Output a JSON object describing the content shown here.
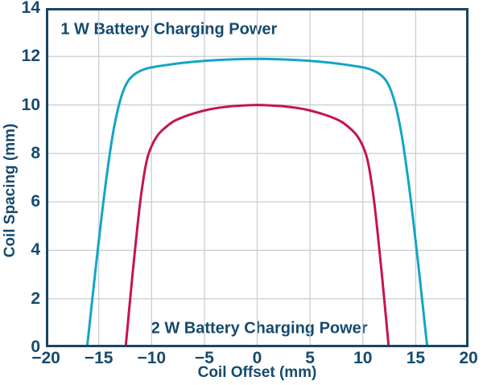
{
  "colors": {
    "background": "#FFFFFF",
    "frame": "#1A4563",
    "grid": "#C9CED3",
    "text": "#154A6E",
    "curve_1w": "#14A5C5",
    "curve_2w": "#C4164A"
  },
  "chart_data": {
    "type": "line",
    "title": "",
    "xlabel": "Coil Offset (mm)",
    "ylabel": "Coil Spacing (mm)",
    "xlim": [
      -20,
      20
    ],
    "ylim": [
      0,
      14
    ],
    "grid": true,
    "legend_position": "none",
    "x_ticks": [
      {
        "v": -20,
        "label": "−20"
      },
      {
        "v": -15,
        "label": "−15"
      },
      {
        "v": -10,
        "label": "−10"
      },
      {
        "v": -5,
        "label": "−5"
      },
      {
        "v": 0,
        "label": "0"
      },
      {
        "v": 5,
        "label": "5"
      },
      {
        "v": 10,
        "label": "10"
      },
      {
        "v": 15,
        "label": "15"
      },
      {
        "v": 20,
        "label": "20"
      }
    ],
    "y_ticks": [
      {
        "v": 0,
        "label": "0"
      },
      {
        "v": 2,
        "label": "2"
      },
      {
        "v": 4,
        "label": "4"
      },
      {
        "v": 6,
        "label": "6"
      },
      {
        "v": 8,
        "label": "8"
      },
      {
        "v": 10,
        "label": "10"
      },
      {
        "v": 12,
        "label": "12"
      },
      {
        "v": 14,
        "label": "14"
      }
    ],
    "annotations": [
      {
        "text": "1 W Battery Charging Power",
        "x": -18.6,
        "y": 13.1,
        "align": "left"
      },
      {
        "text": "2 W Battery Charging Power",
        "x": 0.2,
        "y": 0.76,
        "align": "center"
      }
    ],
    "series": [
      {
        "name": "1 W Battery Charging Power",
        "color": "#14A5C5",
        "peak": 11.9,
        "zero_crossings": [
          -16.1,
          16.1
        ],
        "points": [
          [
            -16.1,
            0
          ],
          [
            -15.7,
            1.6
          ],
          [
            -15.2,
            3.6
          ],
          [
            -14.7,
            5.5
          ],
          [
            -14.2,
            7.2
          ],
          [
            -13.7,
            8.7
          ],
          [
            -13.2,
            9.8
          ],
          [
            -12.7,
            10.55
          ],
          [
            -12.2,
            11.0
          ],
          [
            -11.5,
            11.3
          ],
          [
            -10.5,
            11.5
          ],
          [
            -9,
            11.62
          ],
          [
            -7,
            11.74
          ],
          [
            -5,
            11.82
          ],
          [
            -3,
            11.87
          ],
          [
            0,
            11.9
          ],
          [
            3,
            11.87
          ],
          [
            5,
            11.82
          ],
          [
            7,
            11.74
          ],
          [
            9,
            11.62
          ],
          [
            10.5,
            11.5
          ],
          [
            11.5,
            11.3
          ],
          [
            12.2,
            11.0
          ],
          [
            12.7,
            10.55
          ],
          [
            13.2,
            9.8
          ],
          [
            13.7,
            8.7
          ],
          [
            14.2,
            7.2
          ],
          [
            14.7,
            5.5
          ],
          [
            15.2,
            3.6
          ],
          [
            15.7,
            1.6
          ],
          [
            16.1,
            0
          ]
        ]
      },
      {
        "name": "2 W Battery Charging Power",
        "color": "#C4164A",
        "peak": 10.0,
        "zero_crossings": [
          -12.45,
          12.45
        ],
        "points": [
          [
            -12.45,
            0
          ],
          [
            -12.15,
            1.4
          ],
          [
            -11.8,
            3.0
          ],
          [
            -11.45,
            4.5
          ],
          [
            -11.1,
            5.9
          ],
          [
            -10.75,
            7.0
          ],
          [
            -10.4,
            7.8
          ],
          [
            -10,
            8.3
          ],
          [
            -9.5,
            8.7
          ],
          [
            -9,
            8.95
          ],
          [
            -8,
            9.3
          ],
          [
            -7,
            9.5
          ],
          [
            -6,
            9.65
          ],
          [
            -5,
            9.77
          ],
          [
            -4,
            9.86
          ],
          [
            -3,
            9.92
          ],
          [
            -2,
            9.96
          ],
          [
            0,
            10.0
          ],
          [
            2,
            9.96
          ],
          [
            3,
            9.92
          ],
          [
            4,
            9.86
          ],
          [
            5,
            9.77
          ],
          [
            6,
            9.65
          ],
          [
            7,
            9.5
          ],
          [
            8,
            9.3
          ],
          [
            9,
            8.95
          ],
          [
            9.5,
            8.7
          ],
          [
            10,
            8.3
          ],
          [
            10.4,
            7.8
          ],
          [
            10.75,
            7.0
          ],
          [
            11.1,
            5.9
          ],
          [
            11.45,
            4.5
          ],
          [
            11.8,
            3.0
          ],
          [
            12.15,
            1.4
          ],
          [
            12.45,
            0
          ]
        ]
      }
    ]
  }
}
